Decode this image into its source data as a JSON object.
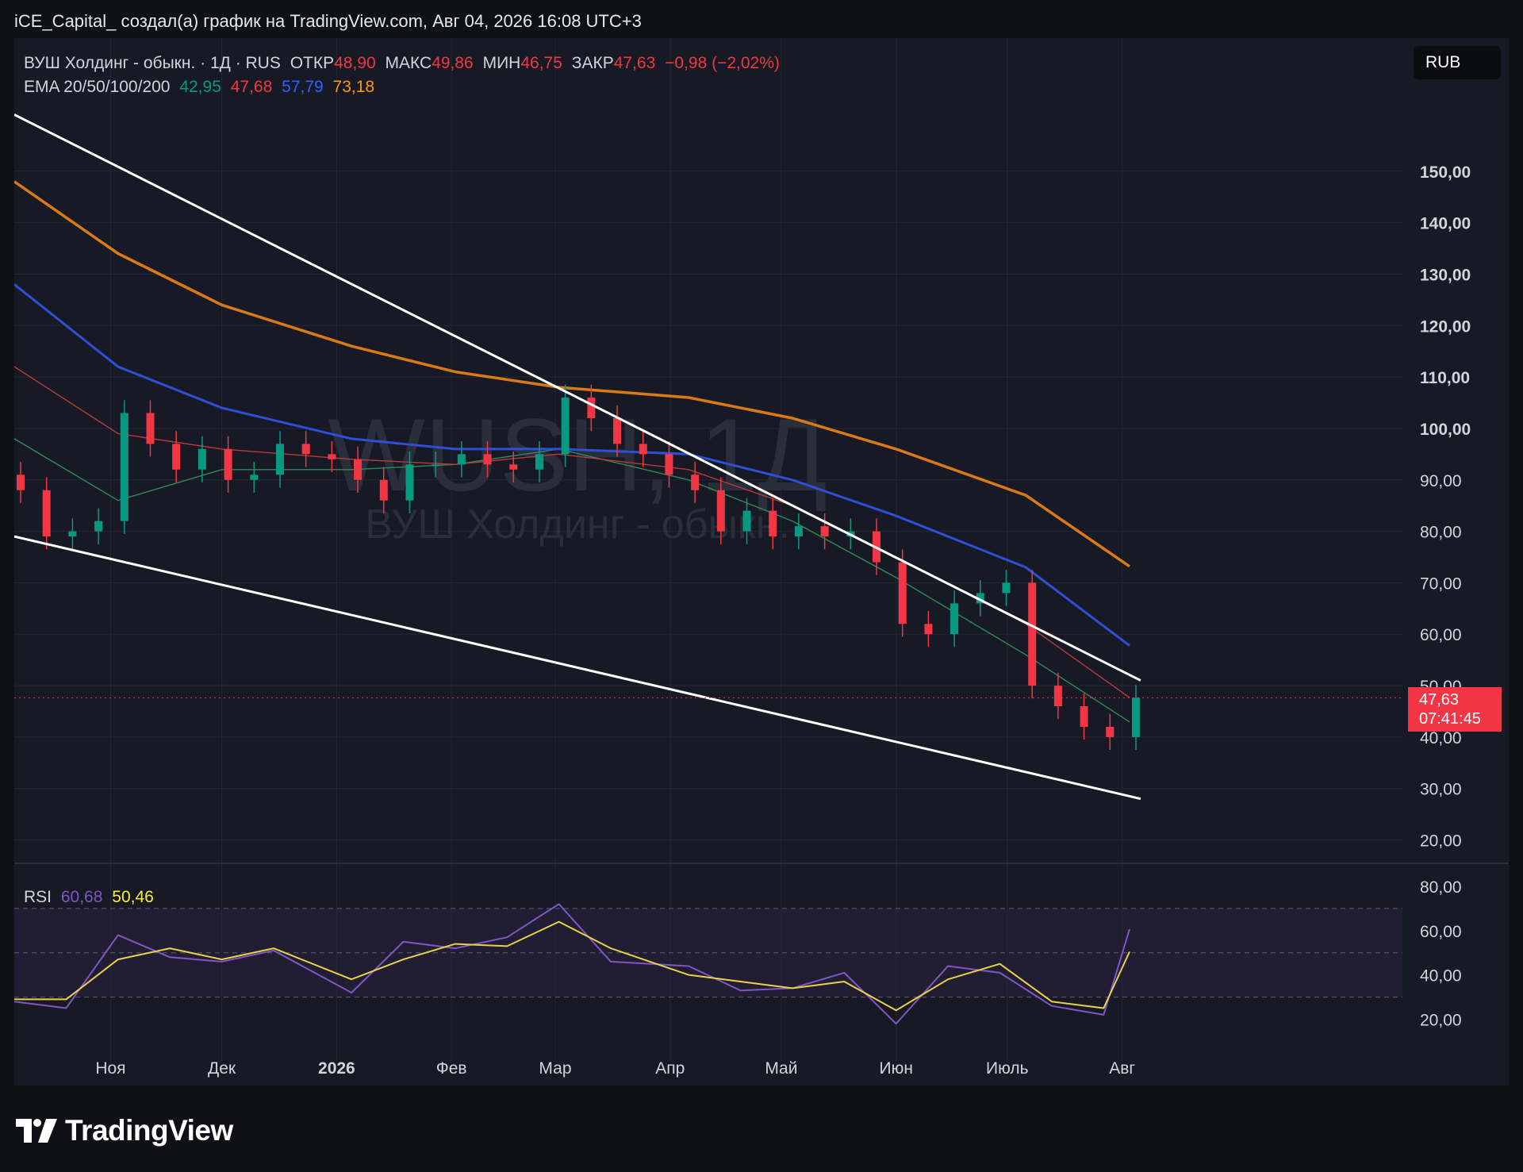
{
  "header": {
    "text": "iCE_Capital_ создал(а) график на TradingView.com, Авг 04, 2026 16:08 UTC+3"
  },
  "currency_button": "RUB",
  "legend": {
    "symbol": "ВУШ Холдинг - обыкн. · 1Д · RUS",
    "open_label": "ОТКР",
    "open_value": "48,90",
    "high_label": "МАКС",
    "high_value": "49,86",
    "low_label": "МИН",
    "low_value": "46,75",
    "close_label": "ЗАКР",
    "close_value": "47,63",
    "change": "−0,98 (−2,02%)",
    "ema_label": "EMA 20/50/100/200",
    "ema_values": [
      "42,95",
      "47,68",
      "57,79",
      "73,18"
    ],
    "rsi_label": "RSI",
    "rsi_values": [
      "60,68",
      "50,46"
    ]
  },
  "watermark": {
    "ticker": "WUSH, 1Д",
    "name": "ВУШ Холдинг - обыкн."
  },
  "price_badge": {
    "price": "47,63",
    "countdown": "07:41:45"
  },
  "logo_text": "TradingView",
  "colors": {
    "up": "#089981",
    "down": "#f23645",
    "ema20": "#2e8b57",
    "ema50": "#b83a3f",
    "ema100": "#2f4fd6",
    "ema200": "#d97a17",
    "rsi": "#7e57c2",
    "rsi_ma": "#e9d24a",
    "trend": "#ffffff"
  },
  "chart_data": [
    {
      "type": "candlestick",
      "title": "ВУШ Холдинг - обыкн. · 1Д · RUS",
      "x_tick_labels": [
        "Ноя",
        "Дек",
        "2026",
        "Фев",
        "Мар",
        "Апр",
        "Май",
        "Июн",
        "Июль",
        "Авг"
      ],
      "y_tick_labels": [
        "20,00",
        "30,00",
        "40,00",
        "50,00",
        "60,00",
        "70,00",
        "80,00",
        "90,00",
        "100,00",
        "110,00",
        "120,00",
        "130,00",
        "140,00",
        "150,00"
      ],
      "ylim": [
        17,
        162
      ],
      "x": [
        "2025-10-06",
        "2025-10-13",
        "2025-10-20",
        "2025-10-27",
        "2025-11-03",
        "2025-11-10",
        "2025-11-17",
        "2025-11-24",
        "2025-12-01",
        "2025-12-08",
        "2025-12-15",
        "2025-12-22",
        "2025-12-29",
        "2026-01-05",
        "2026-01-12",
        "2026-01-19",
        "2026-01-26",
        "2026-02-02",
        "2026-02-09",
        "2026-02-16",
        "2026-02-23",
        "2026-03-02",
        "2026-03-09",
        "2026-03-16",
        "2026-03-23",
        "2026-03-30",
        "2026-04-06",
        "2026-04-13",
        "2026-04-20",
        "2026-04-27",
        "2026-05-04",
        "2026-05-11",
        "2026-05-18",
        "2026-05-25",
        "2026-06-01",
        "2026-06-08",
        "2026-06-15",
        "2026-06-22",
        "2026-06-29",
        "2026-07-06",
        "2026-07-13",
        "2026-07-20",
        "2026-07-27",
        "2026-08-03"
      ],
      "close": [
        88,
        79,
        80,
        82,
        103,
        97,
        92,
        96,
        90,
        91,
        97,
        95,
        94,
        90,
        86,
        93,
        93,
        95,
        93,
        92,
        95,
        106,
        102,
        97,
        95,
        91,
        88,
        80,
        84,
        79,
        81,
        79,
        80,
        74,
        62,
        60,
        66,
        68,
        70,
        50,
        46,
        42,
        40,
        47.63
      ],
      "series": [
        {
          "name": "EMA 20",
          "x": [
            "2025-10-06",
            "2025-11-03",
            "2025-12-01",
            "2026-01-05",
            "2026-02-02",
            "2026-03-02",
            "2026-04-06",
            "2026-05-04",
            "2026-06-01",
            "2026-07-06",
            "2026-08-03"
          ],
          "y": [
            98,
            86,
            92,
            92,
            93,
            96,
            90,
            82,
            71,
            56,
            42.95
          ]
        },
        {
          "name": "EMA 50",
          "x": [
            "2025-10-06",
            "2025-11-03",
            "2025-12-01",
            "2026-01-05",
            "2026-02-02",
            "2026-03-02",
            "2026-04-06",
            "2026-05-04",
            "2026-06-01",
            "2026-07-06",
            "2026-08-03"
          ],
          "y": [
            112,
            99,
            96,
            94,
            93,
            95,
            92,
            85,
            75,
            62,
            47.68
          ]
        },
        {
          "name": "EMA 100",
          "x": [
            "2025-10-06",
            "2025-11-03",
            "2025-12-01",
            "2026-01-05",
            "2026-02-02",
            "2026-03-02",
            "2026-04-06",
            "2026-05-04",
            "2026-06-01",
            "2026-07-06",
            "2026-08-03"
          ],
          "y": [
            128,
            112,
            104,
            98,
            96,
            96,
            95,
            90,
            83,
            73,
            57.79
          ]
        },
        {
          "name": "EMA 200",
          "x": [
            "2025-10-06",
            "2025-11-03",
            "2025-12-01",
            "2026-01-05",
            "2026-02-02",
            "2026-03-02",
            "2026-04-06",
            "2026-05-04",
            "2026-06-01",
            "2026-07-06",
            "2026-08-03"
          ],
          "y": [
            148,
            134,
            124,
            116,
            111,
            108,
            106,
            102,
            96,
            87,
            73.18
          ]
        }
      ],
      "trendlines": [
        {
          "name": "upper",
          "x": [
            "2025-10-06",
            "2026-08-06"
          ],
          "y": [
            161,
            51
          ]
        },
        {
          "name": "lower",
          "x": [
            "2025-10-06",
            "2026-08-06"
          ],
          "y": [
            79,
            28
          ]
        }
      ],
      "last_price": "47,63"
    },
    {
      "type": "line",
      "title": "RSI",
      "y_tick_labels": [
        "20,00",
        "40,00",
        "60,00",
        "80,00"
      ],
      "ylim": [
        8,
        85
      ],
      "bands": [
        30,
        50,
        70
      ],
      "series": [
        {
          "name": "RSI",
          "x": [
            "2025-10-06",
            "2025-10-20",
            "2025-11-03",
            "2025-11-17",
            "2025-12-01",
            "2025-12-15",
            "2026-01-05",
            "2026-01-19",
            "2026-02-02",
            "2026-02-16",
            "2026-03-02",
            "2026-03-16",
            "2026-04-06",
            "2026-04-20",
            "2026-05-04",
            "2026-05-18",
            "2026-06-01",
            "2026-06-15",
            "2026-06-29",
            "2026-07-13",
            "2026-07-27",
            "2026-08-03"
          ],
          "y": [
            28,
            25,
            58,
            48,
            46,
            51,
            32,
            55,
            52,
            57,
            72,
            46,
            44,
            33,
            34,
            41,
            18,
            44,
            41,
            26,
            22,
            60.68
          ]
        },
        {
          "name": "RSI MA",
          "x": [
            "2025-10-06",
            "2025-10-20",
            "2025-11-03",
            "2025-11-17",
            "2025-12-01",
            "2025-12-15",
            "2026-01-05",
            "2026-01-19",
            "2026-02-02",
            "2026-02-16",
            "2026-03-02",
            "2026-03-16",
            "2026-04-06",
            "2026-04-20",
            "2026-05-04",
            "2026-05-18",
            "2026-06-01",
            "2026-06-15",
            "2026-06-29",
            "2026-07-13",
            "2026-07-27",
            "2026-08-03"
          ],
          "y": [
            29,
            29,
            47,
            52,
            47,
            52,
            38,
            47,
            54,
            53,
            64,
            52,
            40,
            37,
            34,
            37,
            24,
            38,
            45,
            28,
            25,
            50.46
          ]
        }
      ]
    }
  ]
}
